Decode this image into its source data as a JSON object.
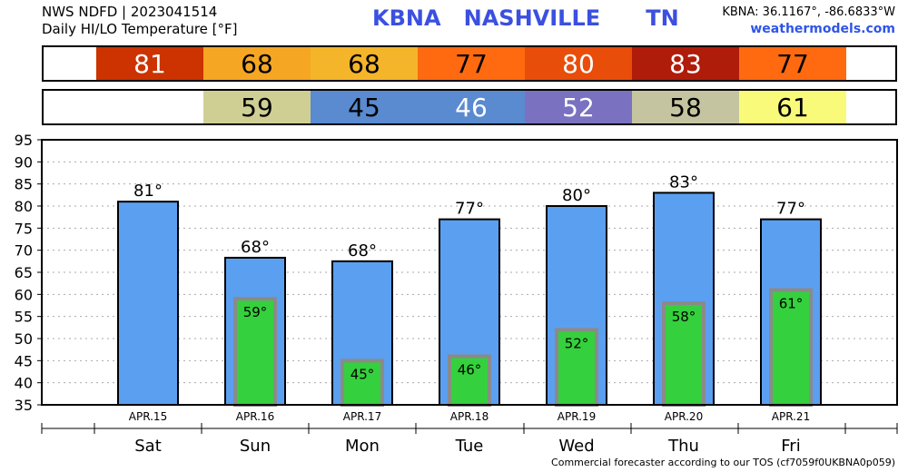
{
  "header": {
    "line1": "NWS NDFD | 2023041514",
    "line2": "Daily HI/LO Temperature [°F]",
    "station": "KBNA   NASHVILLE      TN",
    "coords": "KBNA: 36.1167°, -86.6833°W",
    "site": "weathermodels.com"
  },
  "hi_strip": [
    {
      "text": "81",
      "color": "#cc3300",
      "text_color": "#ffffff"
    },
    {
      "text": "68",
      "color": "#f5a623",
      "text_color": "#000000"
    },
    {
      "text": "68",
      "color": "#f5b52a",
      "text_color": "#000000"
    },
    {
      "text": "77",
      "color": "#ff6a10",
      "text_color": "#000000"
    },
    {
      "text": "80",
      "color": "#e84d0a",
      "text_color": "#ffffff"
    },
    {
      "text": "83",
      "color": "#b01c0a",
      "text_color": "#ffffff"
    },
    {
      "text": "77",
      "color": "#ff6a10",
      "text_color": "#000000"
    }
  ],
  "lo_strip": [
    {
      "text": "",
      "color": "#ffffff",
      "text_color": "#000000"
    },
    {
      "text": "59",
      "color": "#cfcf94",
      "text_color": "#000000"
    },
    {
      "text": "45",
      "color": "#5a8ad0",
      "text_color": "#000000"
    },
    {
      "text": "46",
      "color": "#5a8ad0",
      "text_color": "#ffffff"
    },
    {
      "text": "52",
      "color": "#7a72c0",
      "text_color": "#ffffff"
    },
    {
      "text": "58",
      "color": "#c4c4a0",
      "text_color": "#000000"
    },
    {
      "text": "61",
      "color": "#fafa7a",
      "text_color": "#000000"
    }
  ],
  "chart_data": {
    "type": "bar",
    "categories": [
      "APR.15",
      "APR.16",
      "APR.17",
      "APR.18",
      "APR.19",
      "APR.20",
      "APR.21"
    ],
    "days": [
      "Sat",
      "Sun",
      "Mon",
      "Tue",
      "Wed",
      "Thu",
      "Fri"
    ],
    "series": [
      {
        "values": [
          81,
          68.3,
          67.5,
          77,
          80,
          83,
          77
        ],
        "color": "#5b9ff0",
        "labels": [
          "81°",
          "68°",
          "68°",
          "77°",
          "80°",
          "83°",
          "77°"
        ]
      },
      {
        "values": [
          null,
          59,
          45,
          46,
          52,
          58,
          61
        ],
        "color": "#35d03d",
        "labels": [
          "",
          "59°",
          "45°",
          "46°",
          "52°",
          "58°",
          "61°"
        ]
      }
    ],
    "ylim": [
      35,
      95
    ],
    "yticks": [
      35,
      40,
      45,
      50,
      55,
      60,
      65,
      70,
      75,
      80,
      85,
      90,
      95
    ],
    "grid": true
  },
  "footer": "Commercial forecaster according to our TOS (cf7059f0UKBNA0p059)"
}
